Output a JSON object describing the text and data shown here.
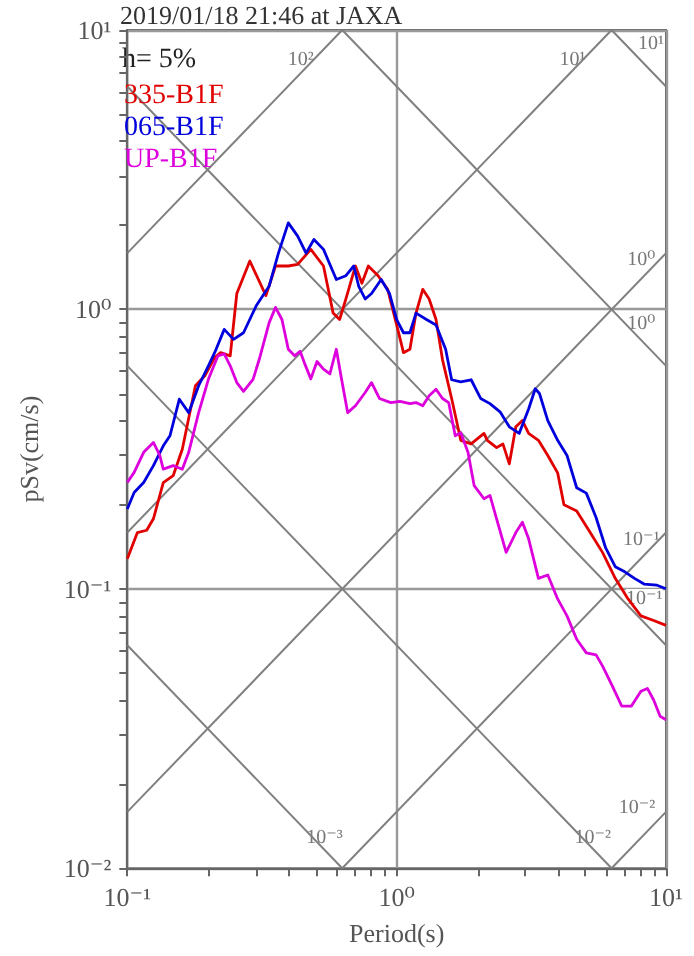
{
  "chart_data": {
    "type": "line",
    "title": "2019/01/18 21:46 at JAXA",
    "xlabel": "Period(s)",
    "ylabel": "pSv(cm/s)",
    "log": "xy",
    "grid": true,
    "legend": "top left",
    "marker": "none",
    "xlim": [
      0.1,
      10
    ],
    "ylim": [
      0.01,
      10
    ],
    "xticks": [
      {
        "value": 0.1,
        "label": "10⁻¹"
      },
      {
        "value": 0.2,
        "label": null
      },
      {
        "value": 0.3,
        "label": null
      },
      {
        "value": 0.4,
        "label": null
      },
      {
        "value": 0.5,
        "label": null
      },
      {
        "value": 0.6,
        "label": null
      },
      {
        "value": 0.7,
        "label": null
      },
      {
        "value": 0.8,
        "label": null
      },
      {
        "value": 0.9,
        "label": null
      },
      {
        "value": 1,
        "label": "10⁰"
      },
      {
        "value": 2,
        "label": null
      },
      {
        "value": 3,
        "label": null
      },
      {
        "value": 4,
        "label": null
      },
      {
        "value": 5,
        "label": null
      },
      {
        "value": 6,
        "label": null
      },
      {
        "value": 7,
        "label": null
      },
      {
        "value": 8,
        "label": null
      },
      {
        "value": 9,
        "label": null
      },
      {
        "value": 10,
        "label": "10¹"
      }
    ],
    "yticks": [
      {
        "value": 0.01,
        "label": "10⁻²"
      },
      {
        "value": 0.02,
        "label": null
      },
      {
        "value": 0.03,
        "label": null
      },
      {
        "value": 0.04,
        "label": null
      },
      {
        "value": 0.05,
        "label": null
      },
      {
        "value": 0.06,
        "label": null
      },
      {
        "value": 0.07,
        "label": null
      },
      {
        "value": 0.08,
        "label": null
      },
      {
        "value": 0.09,
        "label": null
      },
      {
        "value": 0.1,
        "label": "10⁻¹"
      },
      {
        "value": 0.2,
        "label": null
      },
      {
        "value": 0.3,
        "label": null
      },
      {
        "value": 0.4,
        "label": null
      },
      {
        "value": 0.5,
        "label": null
      },
      {
        "value": 0.6,
        "label": null
      },
      {
        "value": 0.7,
        "label": null
      },
      {
        "value": 0.8,
        "label": null
      },
      {
        "value": 0.9,
        "label": null
      },
      {
        "value": 1,
        "label": "10⁰"
      },
      {
        "value": 2,
        "label": null
      },
      {
        "value": 3,
        "label": null
      },
      {
        "value": 4,
        "label": null
      },
      {
        "value": 5,
        "label": null
      },
      {
        "value": 6,
        "label": null
      },
      {
        "value": 7,
        "label": null
      },
      {
        "value": 8,
        "label": null
      },
      {
        "value": 9,
        "label": null
      },
      {
        "value": 10,
        "label": "10¹"
      }
    ],
    "annotations": [
      "h= 5%",
      {
        "text": "10²",
        "x": 0.44,
        "y": 7.8
      },
      {
        "text": "10¹",
        "x": 4.5,
        "y": 7.8
      },
      {
        "text": "10¹",
        "x": 8.8,
        "y": 8.9
      },
      {
        "text": "10⁰",
        "x": 8.1,
        "y": 1.5
      },
      {
        "text": "10⁰",
        "x": 8.1,
        "y": 0.89
      },
      {
        "text": "10⁻¹",
        "x": 8.1,
        "y": 0.15
      },
      {
        "text": "10⁻¹",
        "x": 8.3,
        "y": 0.092
      },
      {
        "text": "10⁻³",
        "x": 0.54,
        "y": 0.0128
      },
      {
        "text": "10⁻²",
        "x": 5.35,
        "y": 0.0128
      },
      {
        "text": "10⁻²",
        "x": 7.8,
        "y": 0.0164
      }
    ],
    "series": [
      {
        "type": "line",
        "color": "#808080",
        "x": [
          0.1,
          0.628
        ],
        "values": [
          1.59,
          10
        ]
      },
      {
        "type": "line",
        "color": "#808080",
        "x": [
          0.1,
          6.28
        ],
        "values": [
          0.159,
          10
        ]
      },
      {
        "type": "line",
        "color": "#808080",
        "x": [
          0.1,
          10
        ],
        "values": [
          0.0159,
          1.59
        ]
      },
      {
        "type": "line",
        "color": "#808080",
        "x": [
          0.628,
          10
        ],
        "values": [
          0.01,
          0.159
        ]
      },
      {
        "type": "line",
        "color": "#808080",
        "x": [
          6.28,
          10
        ],
        "values": [
          0.01,
          0.0159
        ]
      },
      {
        "type": "line",
        "color": "#808080",
        "x": [
          6.28,
          10
        ],
        "values": [
          10,
          6.28
        ]
      },
      {
        "type": "line",
        "color": "#808080",
        "x": [
          0.628,
          10
        ],
        "values": [
          10,
          0.628
        ]
      },
      {
        "type": "line",
        "color": "#808080",
        "x": [
          0.1,
          10
        ],
        "values": [
          6.28,
          0.0628
        ]
      },
      {
        "type": "line",
        "color": "#808080",
        "x": [
          0.1,
          6.28
        ],
        "values": [
          0.628,
          0.01
        ]
      },
      {
        "type": "line",
        "color": "#808080",
        "x": [
          0.1,
          0.628
        ],
        "values": [
          0.0628,
          0.01
        ]
      },
      {
        "name": "335-B1F",
        "color": "#e00000",
        "x": [
          0.1,
          0.109,
          0.118,
          0.125,
          0.136,
          0.148,
          0.16,
          0.179,
          0.194,
          0.211,
          0.222,
          0.241,
          0.255,
          0.285,
          0.327,
          0.355,
          0.396,
          0.429,
          0.48,
          0.535,
          0.581,
          0.614,
          0.648,
          0.703,
          0.743,
          0.785,
          0.853,
          0.926,
          1.0,
          1.06,
          1.12,
          1.18,
          1.25,
          1.32,
          1.4,
          1.48,
          1.6,
          1.73,
          1.89,
          2.11,
          2.17,
          2.35,
          2.48,
          2.62,
          2.77,
          2.93,
          3.09,
          3.36,
          3.64,
          3.96,
          4.18,
          4.66,
          5.21,
          5.81,
          6.48,
          7.23,
          8.07,
          9.0,
          10
        ],
        "values": [
          0.128,
          0.159,
          0.162,
          0.178,
          0.24,
          0.254,
          0.316,
          0.533,
          0.579,
          0.672,
          0.7,
          0.682,
          1.14,
          1.49,
          1.12,
          1.43,
          1.43,
          1.45,
          1.64,
          1.43,
          0.97,
          0.92,
          1.09,
          1.43,
          1.24,
          1.43,
          1.32,
          1.18,
          0.88,
          0.7,
          0.72,
          0.97,
          1.18,
          1.09,
          0.92,
          0.66,
          0.48,
          0.34,
          0.33,
          0.36,
          0.34,
          0.32,
          0.33,
          0.28,
          0.38,
          0.4,
          0.36,
          0.34,
          0.3,
          0.26,
          0.2,
          0.19,
          0.16,
          0.135,
          0.109,
          0.092,
          0.08,
          0.077,
          0.074
        ]
      },
      {
        "name": "065-B1F",
        "color": "#0000dd",
        "x": [
          0.1,
          0.106,
          0.115,
          0.125,
          0.136,
          0.144,
          0.156,
          0.169,
          0.184,
          0.2,
          0.211,
          0.229,
          0.248,
          0.27,
          0.301,
          0.336,
          0.364,
          0.396,
          0.429,
          0.461,
          0.493,
          0.535,
          0.597,
          0.648,
          0.693,
          0.723,
          0.764,
          0.807,
          0.876,
          0.941,
          1.0,
          1.06,
          1.12,
          1.18,
          1.29,
          1.4,
          1.52,
          1.6,
          1.73,
          1.89,
          2.05,
          2.22,
          2.42,
          2.62,
          2.85,
          3.09,
          3.27,
          3.39,
          3.64,
          3.96,
          4.29,
          4.66,
          5.06,
          5.5,
          5.97,
          6.48,
          7.03,
          7.64,
          8.29,
          9.26,
          10
        ],
        "values": [
          0.193,
          0.221,
          0.24,
          0.276,
          0.325,
          0.353,
          0.477,
          0.427,
          0.533,
          0.628,
          0.7,
          0.848,
          0.781,
          0.825,
          1.03,
          1.21,
          1.59,
          2.04,
          1.83,
          1.59,
          1.78,
          1.64,
          1.28,
          1.32,
          1.43,
          1.21,
          1.09,
          1.14,
          1.28,
          1.14,
          0.92,
          0.825,
          0.825,
          0.97,
          0.92,
          0.88,
          0.72,
          0.56,
          0.55,
          0.56,
          0.48,
          0.46,
          0.43,
          0.38,
          0.36,
          0.44,
          0.52,
          0.5,
          0.4,
          0.34,
          0.3,
          0.23,
          0.22,
          0.18,
          0.14,
          0.12,
          0.115,
          0.109,
          0.104,
          0.103,
          0.1
        ]
      },
      {
        "name": "UP-B1F",
        "color": "#dd00dd",
        "x": [
          0.1,
          0.106,
          0.115,
          0.125,
          0.132,
          0.136,
          0.148,
          0.16,
          0.169,
          0.184,
          0.2,
          0.217,
          0.229,
          0.241,
          0.255,
          0.27,
          0.293,
          0.309,
          0.336,
          0.355,
          0.375,
          0.396,
          0.418,
          0.438,
          0.454,
          0.48,
          0.506,
          0.535,
          0.565,
          0.597,
          0.621,
          0.658,
          0.703,
          0.764,
          0.807,
          0.863,
          0.951,
          1.03,
          1.12,
          1.18,
          1.25,
          1.32,
          1.4,
          1.48,
          1.56,
          1.65,
          1.73,
          1.84,
          1.94,
          2.11,
          2.22,
          2.35,
          2.55,
          2.77,
          2.93,
          3.09,
          3.36,
          3.64,
          3.96,
          4.29,
          4.66,
          5.06,
          5.5,
          5.81,
          6.31,
          6.85,
          7.43,
          8.07,
          8.53,
          9.0,
          9.51,
          10
        ],
        "values": [
          0.24,
          0.261,
          0.308,
          0.334,
          0.3,
          0.268,
          0.276,
          0.268,
          0.308,
          0.427,
          0.562,
          0.682,
          0.693,
          0.628,
          0.547,
          0.509,
          0.562,
          0.663,
          0.895,
          1.017,
          0.92,
          0.72,
          0.682,
          0.708,
          0.645,
          0.564,
          0.651,
          0.611,
          0.588,
          0.72,
          0.579,
          0.427,
          0.452,
          0.504,
          0.547,
          0.48,
          0.464,
          0.469,
          0.46,
          0.464,
          0.452,
          0.491,
          0.518,
          0.48,
          0.464,
          0.353,
          0.362,
          0.308,
          0.234,
          0.21,
          0.216,
          0.178,
          0.135,
          0.159,
          0.173,
          0.151,
          0.109,
          0.112,
          0.092,
          0.08,
          0.066,
          0.059,
          0.058,
          0.053,
          0.045,
          0.038,
          0.038,
          0.043,
          0.044,
          0.04,
          0.035,
          0.034
        ]
      }
    ]
  }
}
